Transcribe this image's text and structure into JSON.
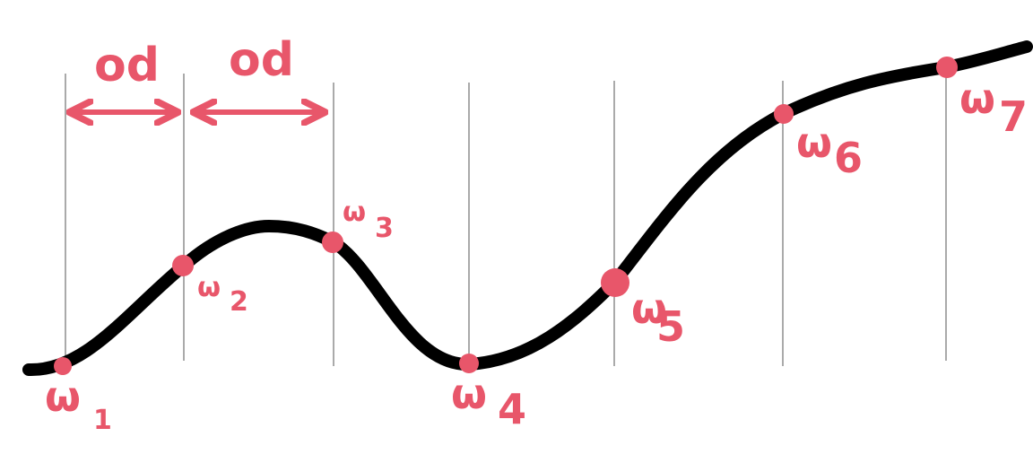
{
  "colors": {
    "background": "#ffffff",
    "curve": "#000000",
    "accent": "#e8566a",
    "gridline": "#555555"
  },
  "spacing_labels": [
    {
      "text": "od"
    },
    {
      "text": "od"
    }
  ],
  "points": [
    {
      "letter": "ω",
      "index": "1"
    },
    {
      "letter": "ω",
      "index": "2"
    },
    {
      "letter": "ω",
      "index": "3"
    },
    {
      "letter": "ω",
      "index": "4"
    },
    {
      "letter": "ω",
      "index": "5"
    },
    {
      "letter": "ω",
      "index": "6"
    },
    {
      "letter": "ω",
      "index": "7"
    }
  ]
}
